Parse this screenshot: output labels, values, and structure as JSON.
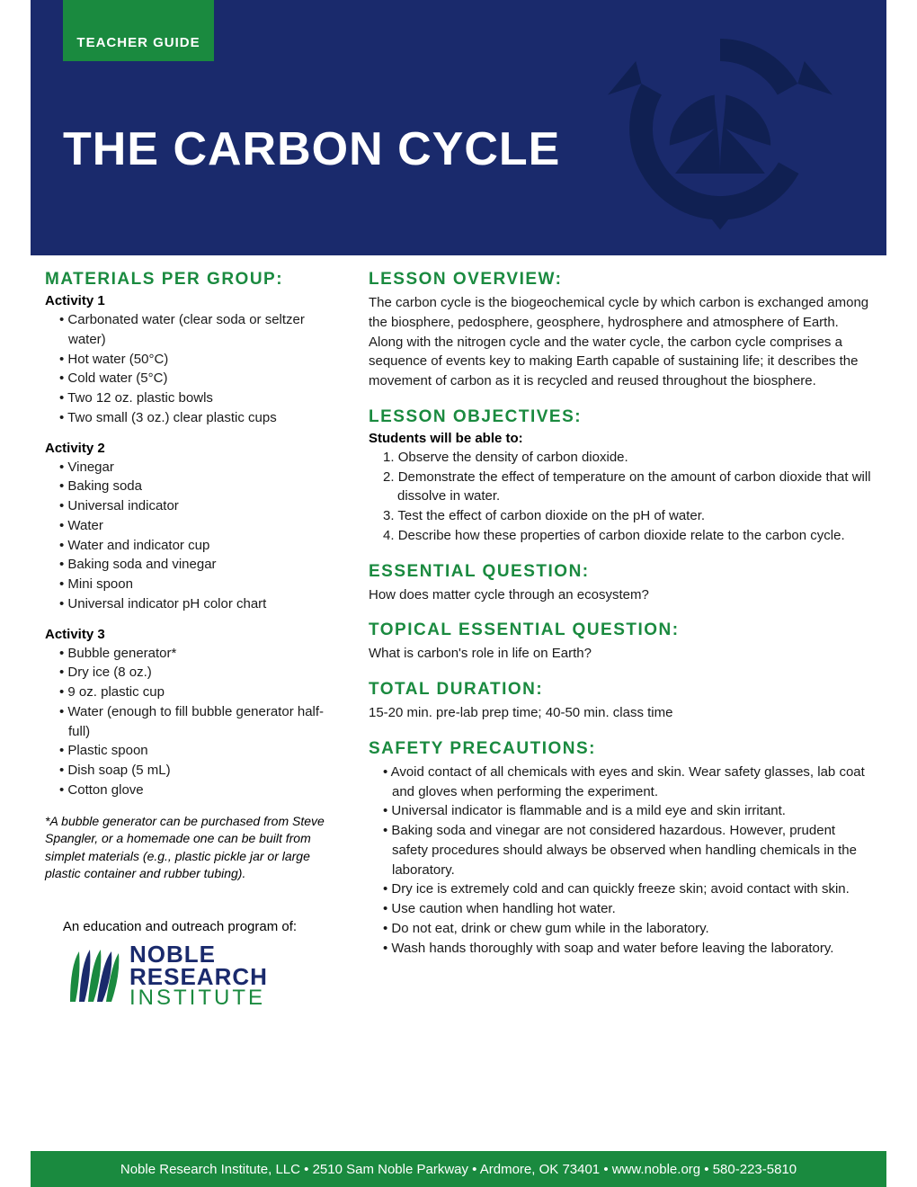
{
  "colors": {
    "header_bg": "#1a2a6c",
    "accent_green": "#1a8a3f",
    "text": "#1a1a1a",
    "white": "#ffffff"
  },
  "tab_label": "TEACHER GUIDE",
  "title": "THE CARBON CYCLE",
  "materials": {
    "heading": "MATERIALS PER GROUP:",
    "activity1_label": "Activity 1",
    "activity1_items": [
      "Carbonated water (clear soda or seltzer water)",
      "Hot water (50°C)",
      "Cold water (5°C)",
      "Two 12 oz. plastic bowls",
      "Two small (3 oz.) clear plastic cups"
    ],
    "activity2_label": "Activity 2",
    "activity2_items": [
      "Vinegar",
      "Baking soda",
      "Universal indicator",
      "Water",
      "Water and indicator cup",
      "Baking soda and vinegar",
      "Mini spoon",
      "Universal indicator pH color chart"
    ],
    "activity3_label": "Activity 3",
    "activity3_items": [
      "Bubble generator*",
      "Dry ice (8 oz.)",
      "9 oz. plastic cup",
      "Water (enough to fill bubble generator half-full)",
      "Plastic spoon",
      "Dish soap (5 mL)",
      "Cotton glove"
    ],
    "footnote": "*A bubble generator can be purchased from Steve Spangler, or a homemade one can be built from simplet materials (e.g., plastic pickle jar or large plastic container and rubber tubing)."
  },
  "program_line": "An education and outreach program of:",
  "logo": {
    "line1": "NOBLE",
    "line2": "RESEARCH",
    "line3": "INSTITUTE"
  },
  "overview": {
    "heading": "LESSON OVERVIEW:",
    "text": "The carbon cycle is the biogeochemical cycle by which carbon is exchanged among the biosphere, pedosphere, geosphere, hydrosphere and atmosphere of Earth. Along with the nitrogen cycle and the water cycle, the carbon cycle comprises a sequence of events key to making Earth capable of sustaining life; it describes the movement of carbon as it is recycled and reused throughout the biosphere."
  },
  "objectives": {
    "heading": "LESSON OBJECTIVES:",
    "sub": "Students will be able to:",
    "items": [
      "Observe the density of carbon dioxide.",
      "Demonstrate the effect of temperature on the amount of carbon dioxide that will dissolve in water.",
      "Test the effect of carbon dioxide on the pH of water.",
      "Describe how these properties of carbon dioxide relate to the carbon cycle."
    ]
  },
  "essential": {
    "heading": "ESSENTIAL QUESTION:",
    "text": "How does matter cycle through an ecosystem?"
  },
  "topical": {
    "heading": "TOPICAL ESSENTIAL QUESTION:",
    "text": "What is carbon's role in life on Earth?"
  },
  "duration": {
    "heading": "TOTAL DURATION:",
    "text": "15-20 min. pre-lab prep time; 40-50 min. class time"
  },
  "safety": {
    "heading": "SAFETY PRECAUTIONS:",
    "items": [
      "Avoid contact of all chemicals with eyes and skin. Wear safety glasses, lab coat and gloves when performing the experiment.",
      "Universal indicator is flammable and is a mild eye and skin irritant.",
      "Baking soda and vinegar are not considered hazardous. However, prudent safety procedures should always be observed when handling chemicals in the laboratory.",
      "Dry ice is extremely cold and can quickly freeze skin; avoid contact with skin.",
      "Use caution when handling hot water.",
      "Do not eat, drink or chew gum while in the laboratory.",
      "Wash hands thoroughly with soap and water before leaving the laboratory."
    ]
  },
  "footer": "Noble Research Institute, LLC  •  2510 Sam Noble Parkway  •  Ardmore, OK 73401  •  www.noble.org  •  580-223-5810"
}
